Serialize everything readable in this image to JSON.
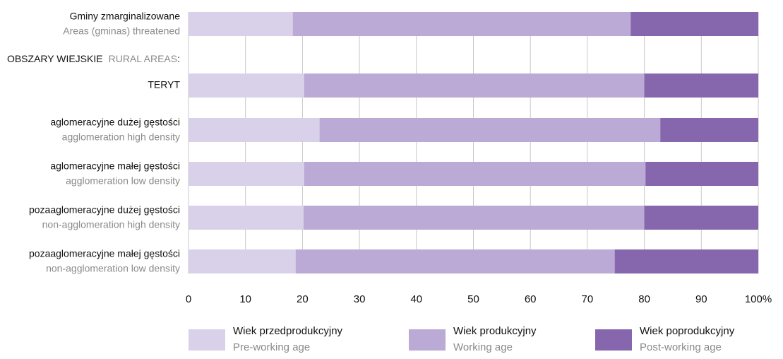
{
  "chart_data": {
    "type": "stacked-bar-horizontal",
    "categories": [
      "Gminy zmarginalizowane",
      "TERYT",
      "aglomeracyjne dużej gęstości",
      "aglomeracyjne małej gęstości",
      "pozaaglomeracyjne dużej gęstości",
      "pozaaglomeracyjne małej gęstości"
    ],
    "categories_en": [
      "Areas (gminas) threatened",
      null,
      "agglomeration high density",
      "agglomeration low density",
      "non-agglomeration high density",
      "non-agglomeration low density"
    ],
    "group_label": {
      "pl": "OBSZARY WIEJSKIE",
      "en": "RURAL AREAS",
      "suffix": ":"
    },
    "series": [
      {
        "name": "Wiek przedprodukcyjny",
        "name_en": "Pre-working age",
        "color": "#d9d0ea",
        "values": [
          18.3,
          20.3,
          23.0,
          20.3,
          20.2,
          18.8
        ]
      },
      {
        "name": "Wiek produkcyjny",
        "name_en": "Working age",
        "color": "#bba9d6",
        "values": [
          59.3,
          59.7,
          59.8,
          59.9,
          59.8,
          56.0
        ]
      },
      {
        "name": "Wiek poprodukcyjny",
        "name_en": "Post-working age",
        "color": "#8667ad",
        "values": [
          22.4,
          20.0,
          17.2,
          19.8,
          20.0,
          25.2
        ]
      }
    ],
    "xlim": [
      0,
      100
    ],
    "xticks": [
      0,
      10,
      20,
      30,
      40,
      50,
      60,
      70,
      80,
      90,
      {
        "value": 100,
        "label": "100%"
      }
    ],
    "grid": true
  }
}
